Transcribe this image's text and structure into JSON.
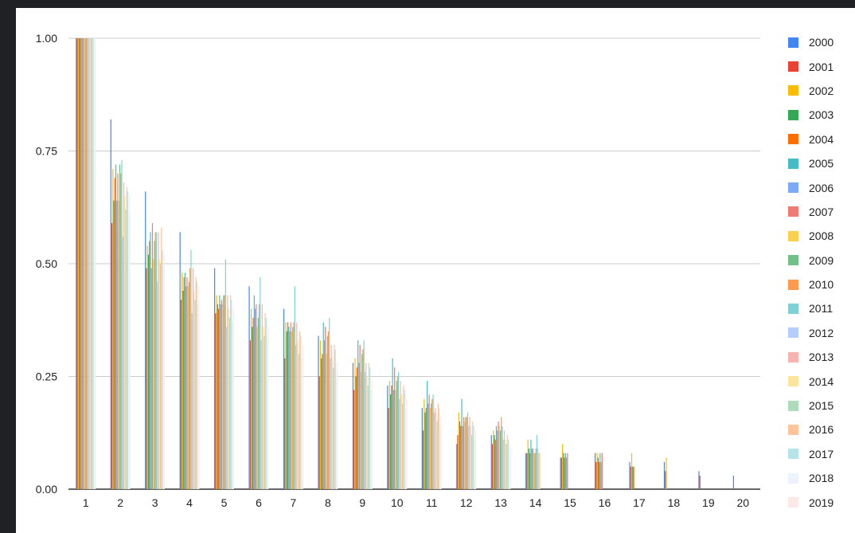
{
  "chart_data": {
    "type": "bar",
    "title": "",
    "xlabel": "",
    "ylabel": "",
    "ylim": [
      0,
      1
    ],
    "yticks": [
      "0.00",
      "0.25",
      "0.50",
      "0.75",
      "1.00"
    ],
    "grid": true,
    "legend_position": "right",
    "categories": [
      "1",
      "2",
      "3",
      "4",
      "5",
      "6",
      "7",
      "8",
      "9",
      "10",
      "11",
      "12",
      "13",
      "14",
      "15",
      "16",
      "17",
      "18",
      "19",
      "20"
    ],
    "series": [
      {
        "name": "2000",
        "color": "#4285f4",
        "values": [
          1,
          0.82,
          0.66,
          0.57,
          0.49,
          0.45,
          0.4,
          0.34,
          0.28,
          0.23,
          0.18,
          0.1,
          0.12,
          0.08,
          0.07,
          0.08,
          0.06,
          0.06,
          0.04,
          0.03
        ]
      },
      {
        "name": "2001",
        "color": "#ea4335",
        "values": [
          1,
          0.59,
          0.49,
          0.42,
          0.39,
          0.33,
          0.29,
          0.25,
          0.22,
          0.18,
          0.13,
          0.12,
          0.1,
          0.08,
          0.07,
          0.06,
          0.05,
          0.04,
          0.03,
          0
        ]
      },
      {
        "name": "2002",
        "color": "#fbbc04",
        "values": [
          1,
          0.71,
          0.54,
          0.48,
          0.43,
          0.4,
          0.37,
          0.33,
          0.29,
          0.24,
          0.2,
          0.17,
          0.13,
          0.11,
          0.1,
          0.08,
          0.08,
          0.07,
          0,
          0
        ]
      },
      {
        "name": "2003",
        "color": "#34a853",
        "values": [
          1,
          0.64,
          0.52,
          0.44,
          0.41,
          0.36,
          0.35,
          0.29,
          0.25,
          0.21,
          0.17,
          0.15,
          0.12,
          0.09,
          0.08,
          0.07,
          0.05,
          0,
          0,
          0
        ]
      },
      {
        "name": "2004",
        "color": "#ff6d01",
        "values": [
          1,
          0.69,
          0.55,
          0.47,
          0.4,
          0.38,
          0.37,
          0.3,
          0.27,
          0.23,
          0.18,
          0.14,
          0.11,
          0.08,
          0.07,
          0.06,
          0.05,
          0,
          0,
          0
        ]
      },
      {
        "name": "2005",
        "color": "#46bdc6",
        "values": [
          1,
          0.72,
          0.57,
          0.48,
          0.43,
          0.43,
          0.36,
          0.37,
          0.33,
          0.29,
          0.24,
          0.2,
          0.14,
          0.11,
          0.08,
          0.08,
          0,
          0,
          0,
          0
        ]
      },
      {
        "name": "2006",
        "color": "#7baaf7",
        "values": [
          1,
          0.64,
          0.49,
          0.45,
          0.41,
          0.4,
          0.35,
          0.33,
          0.28,
          0.22,
          0.19,
          0.14,
          0.13,
          0.09,
          0.07,
          0.06,
          0,
          0,
          0,
          0
        ]
      },
      {
        "name": "2007",
        "color": "#f07b72",
        "values": [
          1,
          0.7,
          0.59,
          0.47,
          0.42,
          0.41,
          0.37,
          0.36,
          0.32,
          0.27,
          0.21,
          0.16,
          0.15,
          0.09,
          0.08,
          0.08,
          0,
          0,
          0,
          0
        ]
      },
      {
        "name": "2008",
        "color": "#fcd04f",
        "values": [
          1,
          0.64,
          0.51,
          0.45,
          0.41,
          0.36,
          0.35,
          0.3,
          0.26,
          0.22,
          0.18,
          0.15,
          0.14,
          0.08,
          0,
          0,
          0,
          0,
          0,
          0
        ]
      },
      {
        "name": "2009",
        "color": "#71c287",
        "values": [
          1,
          0.72,
          0.55,
          0.46,
          0.43,
          0.38,
          0.36,
          0.34,
          0.3,
          0.24,
          0.19,
          0.16,
          0.13,
          0.08,
          0,
          0,
          0,
          0,
          0,
          0
        ]
      },
      {
        "name": "2010",
        "color": "#ff994d",
        "values": [
          1,
          0.7,
          0.57,
          0.49,
          0.43,
          0.41,
          0.37,
          0.35,
          0.31,
          0.25,
          0.2,
          0.16,
          0.16,
          0.09,
          0,
          0,
          0,
          0,
          0,
          0
        ]
      },
      {
        "name": "2011",
        "color": "#7ed1d7",
        "values": [
          1,
          0.73,
          0.57,
          0.53,
          0.51,
          0.47,
          0.45,
          0.38,
          0.33,
          0.26,
          0.21,
          0.17,
          0.14,
          0.12,
          0,
          0,
          0,
          0,
          0,
          0
        ]
      },
      {
        "name": "2012",
        "color": "#b3cefb",
        "values": [
          1,
          0.56,
          0.46,
          0.39,
          0.36,
          0.33,
          0.32,
          0.29,
          0.26,
          0.2,
          0.17,
          0.14,
          0.11,
          0.09,
          0,
          0,
          0,
          0,
          0,
          0
        ]
      },
      {
        "name": "2013",
        "color": "#f7b4ae",
        "values": [
          1,
          0.68,
          0.57,
          0.49,
          0.43,
          0.41,
          0.37,
          0.32,
          0.28,
          0.24,
          0.18,
          0.16,
          0.13,
          0.08,
          0,
          0,
          0,
          0,
          0,
          0
        ]
      },
      {
        "name": "2014",
        "color": "#fde49b",
        "values": [
          1,
          0.65,
          0.51,
          0.44,
          0.4,
          0.36,
          0.33,
          0.29,
          0.25,
          0.21,
          0.17,
          0.14,
          0.11,
          0.08,
          0,
          0,
          0,
          0,
          0,
          0
        ]
      },
      {
        "name": "2015",
        "color": "#aedcba",
        "values": [
          1,
          0.62,
          0.5,
          0.42,
          0.38,
          0.34,
          0.3,
          0.27,
          0.23,
          0.19,
          0.15,
          0.12,
          0.1,
          0,
          0,
          0,
          0,
          0,
          0,
          0
        ]
      },
      {
        "name": "2016",
        "color": "#ffc599",
        "values": [
          1,
          0.67,
          0.58,
          0.47,
          0.43,
          0.39,
          0.35,
          0.32,
          0.28,
          0.23,
          0.19,
          0.15,
          0.12,
          0,
          0,
          0,
          0,
          0,
          0,
          0
        ]
      },
      {
        "name": "2017",
        "color": "#b5e5e8",
        "values": [
          1,
          0.66,
          0.53,
          0.46,
          0.42,
          0.38,
          0.34,
          0.31,
          0.27,
          0.22,
          0.18,
          0.14,
          0.11,
          0,
          0,
          0,
          0,
          0,
          0,
          0
        ]
      },
      {
        "name": "2018",
        "color": "#ecf3fe",
        "values": [
          1,
          0.61,
          0.49,
          0.41,
          0.37,
          0.33,
          0.29,
          0.26,
          0.22,
          0.18,
          0.14,
          0.11,
          0.09,
          0,
          0,
          0,
          0,
          0,
          0,
          0
        ]
      },
      {
        "name": "2019",
        "color": "#fce8e6",
        "values": [
          1,
          0.65,
          0.52,
          0.45,
          0.4,
          0.36,
          0.32,
          0.28,
          0.24,
          0.2,
          0.16,
          0.13,
          0.1,
          0,
          0,
          0,
          0,
          0,
          0,
          0
        ]
      }
    ]
  }
}
